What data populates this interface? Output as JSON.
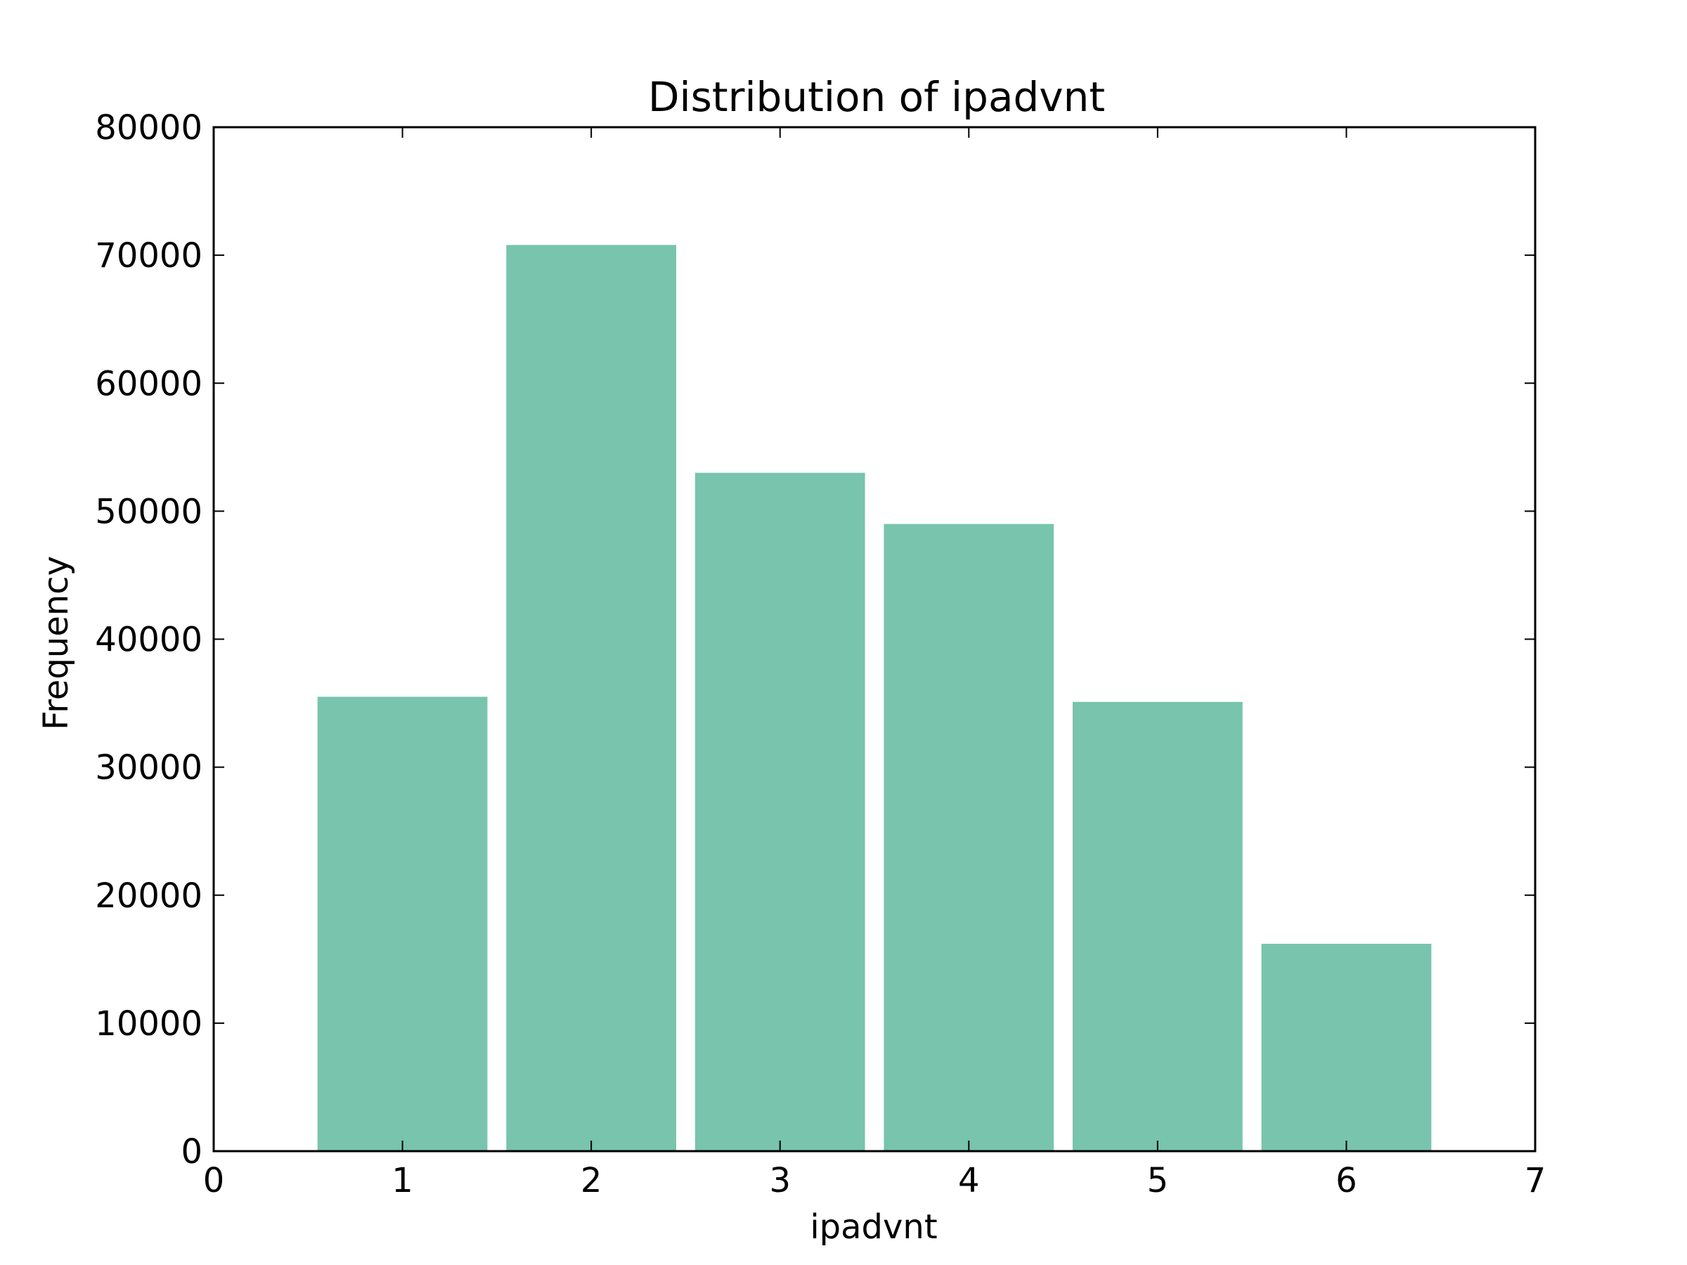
{
  "chart_data": {
    "type": "bar",
    "title": "Distribution of ipadvnt",
    "xlabel": "ipadvnt",
    "ylabel": "Frequency",
    "categories": [
      1,
      2,
      3,
      4,
      5,
      6
    ],
    "values": [
      35500,
      70800,
      53000,
      49000,
      35100,
      16200
    ],
    "bar_width": 0.9,
    "xlim": [
      0,
      7
    ],
    "ylim": [
      0,
      80000
    ],
    "xticks": [
      0,
      1,
      2,
      3,
      4,
      5,
      6,
      7
    ],
    "yticks": [
      0,
      10000,
      20000,
      30000,
      40000,
      50000,
      60000,
      70000,
      80000
    ],
    "grid": false,
    "bar_color": "#78c4ad"
  }
}
